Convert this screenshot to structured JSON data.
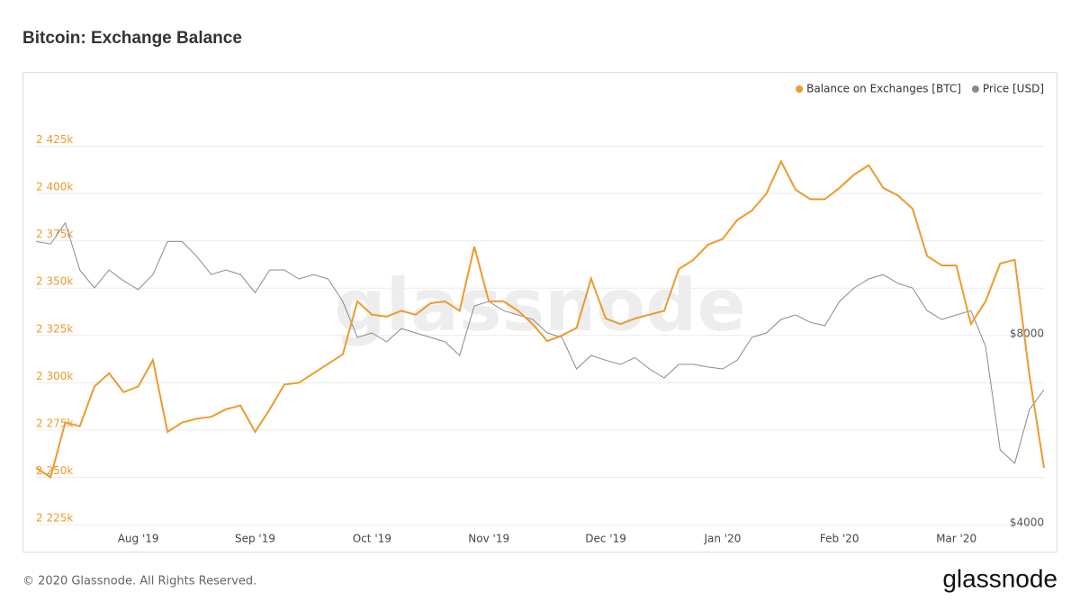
{
  "chart_data": {
    "type": "line",
    "title": "Bitcoin: Exchange Balance",
    "watermark": "glassnode",
    "footer": "© 2020 Glassnode. All Rights Reserved.",
    "logo": "glassnode",
    "legend": "top-right",
    "grid": true,
    "categories": [
      null,
      null,
      null,
      null,
      null,
      null,
      null,
      "Aug '19",
      null,
      null,
      null,
      null,
      null,
      null,
      null,
      "Sep '19",
      null,
      null,
      null,
      null,
      null,
      null,
      null,
      "Oct '19",
      null,
      null,
      null,
      null,
      null,
      null,
      null,
      "Nov '19",
      null,
      null,
      null,
      null,
      null,
      null,
      null,
      "Dec '19",
      null,
      null,
      null,
      null,
      null,
      null,
      null,
      "Jan '20",
      null,
      null,
      null,
      null,
      null,
      null,
      null,
      "Feb '20",
      null,
      null,
      null,
      null,
      null,
      null,
      null,
      "Mar '20",
      null,
      null,
      null,
      null,
      null,
      null
    ],
    "ylim": [
      2225000,
      2450000
    ],
    "yticks": [
      {
        "value": 2225000,
        "label": "2 225k"
      },
      {
        "value": 2250000,
        "label": "2 250k"
      },
      {
        "value": 2275000,
        "label": "2 275k"
      },
      {
        "value": 2300000,
        "label": "2 300k"
      },
      {
        "value": 2325000,
        "label": "2 325k"
      },
      {
        "value": 2350000,
        "label": "2 350k"
      },
      {
        "value": 2375000,
        "label": "2 375k"
      },
      {
        "value": 2400000,
        "label": "2 400k"
      },
      {
        "value": 2425000,
        "label": "2 425k"
      }
    ],
    "y2lim": [
      4000,
      19060
    ],
    "y2log": true,
    "y2ticks": [
      {
        "value": 8000,
        "label": "$8000"
      },
      {
        "value": 4000,
        "label": "$4000"
      }
    ],
    "series": [
      {
        "name": "Balance on Exchanges [BTC]",
        "color": "#ee9a2c",
        "values": [
          2255000,
          2250000,
          2279000,
          2277000,
          2298000,
          2305000,
          2295000,
          2298000,
          2312000,
          2274000,
          2279000,
          2281000,
          2282000,
          2286000,
          2288000,
          2274000,
          2286000,
          2299000,
          2300000,
          2305000,
          2310000,
          2315000,
          2343000,
          2336000,
          2335000,
          2338000,
          2336000,
          2342000,
          2343000,
          2338000,
          2372000,
          2343000,
          2343000,
          2338000,
          2331000,
          2322000,
          2325000,
          2329000,
          2355000,
          2334000,
          2331000,
          2334000,
          2336000,
          2338000,
          2360000,
          2365000,
          2373000,
          2376000,
          2386000,
          2391000,
          2400000,
          2417000,
          2402000,
          2397000,
          2397000,
          2403000,
          2410000,
          2415000,
          2403000,
          2399000,
          2392000,
          2367000,
          2362000,
          2362000,
          2331000,
          2343000,
          2363000,
          2365000,
          2304000,
          2255000
        ]
      },
      {
        "name": "Price [USD]",
        "color": "#8a8a8a",
        "axis": "y2",
        "values": [
          11300,
          11200,
          12100,
          10180,
          9530,
          10180,
          9780,
          9470,
          10010,
          11300,
          11300,
          10700,
          10010,
          10180,
          10010,
          9370,
          10180,
          10180,
          9850,
          10010,
          9850,
          9070,
          7950,
          8080,
          7820,
          8210,
          8080,
          7950,
          7820,
          7440,
          8920,
          9070,
          8770,
          8630,
          8490,
          8080,
          7950,
          7080,
          7440,
          7310,
          7200,
          7380,
          7080,
          6850,
          7200,
          7200,
          7130,
          7080,
          7310,
          7950,
          8080,
          8490,
          8630,
          8400,
          8300,
          9070,
          9530,
          9850,
          10010,
          9690,
          9530,
          8770,
          8490,
          8630,
          8770,
          7690,
          5260,
          5010,
          6100,
          6560
        ]
      }
    ]
  }
}
